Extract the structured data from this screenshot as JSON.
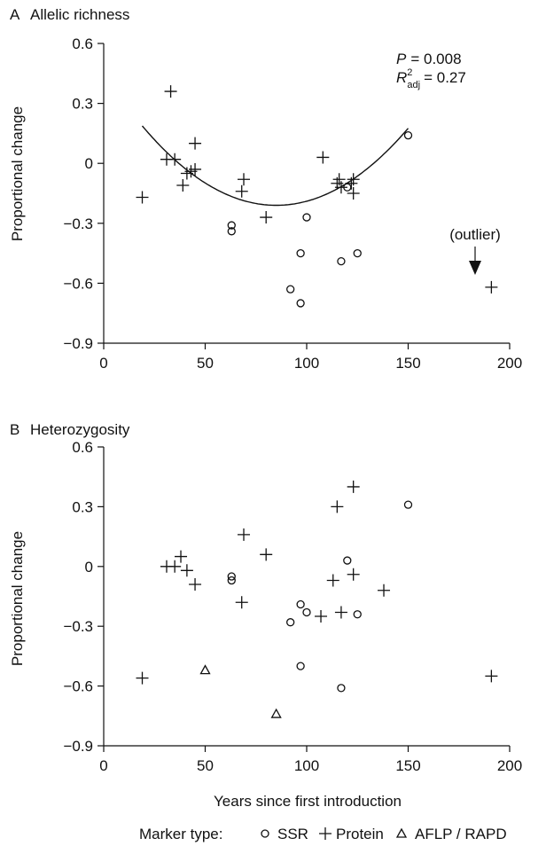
{
  "figure": {
    "xlabel": "Years since first introduction",
    "legend": {
      "title": "Marker type:",
      "items": [
        {
          "marker": "circle",
          "label": "SSR"
        },
        {
          "marker": "plus",
          "label": "Protein"
        },
        {
          "marker": "triangle",
          "label": "AFLP / RAPD"
        }
      ]
    }
  },
  "chart_data": [
    {
      "type": "scatter",
      "panel_letter": "A",
      "title": "Allelic richness",
      "xlabel": "",
      "ylabel": "Proportional change",
      "xlim": [
        0,
        200
      ],
      "ylim": [
        -0.9,
        0.6
      ],
      "xticks": [
        0,
        50,
        100,
        150,
        200
      ],
      "yticks": [
        -0.9,
        -0.6,
        -0.3,
        0,
        0.3,
        0.6
      ],
      "ytick_labels": [
        "−0.9",
        "−0.6",
        "−0.3",
        "0",
        "0.3",
        "0.6"
      ],
      "stats": {
        "p_label": "P",
        "p_value": "= 0.008",
        "r2_label": "R",
        "r2_sup": "2",
        "r2_sub": "adj",
        "r2_value": "= 0.27"
      },
      "annotation": {
        "text": "(outlier)",
        "x": 192,
        "y": -0.62
      },
      "fit": {
        "type": "quadratic",
        "x_range": [
          19,
          150
        ],
        "vertex_x": 85,
        "vertex_y": -0.21,
        "a": 9.12e-05
      },
      "series": [
        {
          "marker": "circle",
          "points": [
            [
              63,
              -0.31
            ],
            [
              63,
              -0.34
            ],
            [
              92,
              -0.63
            ],
            [
              97,
              -0.45
            ],
            [
              97,
              -0.7
            ],
            [
              100,
              -0.27
            ],
            [
              117,
              -0.49
            ],
            [
              120,
              -0.12
            ],
            [
              125,
              -0.45
            ],
            [
              150,
              0.14
            ]
          ]
        },
        {
          "marker": "plus",
          "points": [
            [
              19,
              -0.17
            ],
            [
              31,
              0.02
            ],
            [
              33,
              0.36
            ],
            [
              35,
              0.02
            ],
            [
              39,
              -0.11
            ],
            [
              41,
              -0.05
            ],
            [
              43,
              -0.04
            ],
            [
              45,
              0.1
            ],
            [
              45,
              -0.03
            ],
            [
              68,
              -0.14
            ],
            [
              69,
              -0.08
            ],
            [
              80,
              -0.27
            ],
            [
              108,
              0.03
            ],
            [
              115,
              -0.1
            ],
            [
              116,
              -0.08
            ],
            [
              117,
              -0.12
            ],
            [
              122,
              -0.1
            ],
            [
              123,
              -0.15
            ],
            [
              123,
              -0.08
            ],
            [
              191,
              -0.62
            ]
          ]
        },
        {
          "marker": "triangle",
          "points": []
        }
      ]
    },
    {
      "type": "scatter",
      "panel_letter": "B",
      "title": "Heterozygosity",
      "xlabel": "Years since first introduction",
      "ylabel": "Proportional change",
      "xlim": [
        0,
        200
      ],
      "ylim": [
        -0.9,
        0.6
      ],
      "xticks": [
        0,
        50,
        100,
        150,
        200
      ],
      "yticks": [
        -0.9,
        -0.6,
        -0.3,
        0,
        0.3,
        0.6
      ],
      "ytick_labels": [
        "−0.9",
        "−0.6",
        "−0.3",
        "0",
        "0.3",
        "0.6"
      ],
      "series": [
        {
          "marker": "circle",
          "points": [
            [
              63,
              -0.05
            ],
            [
              63,
              -0.07
            ],
            [
              92,
              -0.28
            ],
            [
              97,
              -0.19
            ],
            [
              97,
              -0.5
            ],
            [
              100,
              -0.23
            ],
            [
              117,
              -0.61
            ],
            [
              120,
              0.03
            ],
            [
              125,
              -0.24
            ],
            [
              150,
              0.31
            ]
          ]
        },
        {
          "marker": "plus",
          "points": [
            [
              19,
              -0.56
            ],
            [
              31,
              0.0
            ],
            [
              35,
              0.0
            ],
            [
              38,
              0.05
            ],
            [
              41,
              -0.02
            ],
            [
              45,
              -0.09
            ],
            [
              69,
              0.16
            ],
            [
              68,
              -0.18
            ],
            [
              80,
              0.06
            ],
            [
              107,
              -0.25
            ],
            [
              113,
              -0.07
            ],
            [
              115,
              0.3
            ],
            [
              117,
              -0.23
            ],
            [
              123,
              0.4
            ],
            [
              123,
              -0.04
            ],
            [
              138,
              -0.12
            ],
            [
              191,
              -0.55
            ]
          ]
        },
        {
          "marker": "triangle",
          "points": [
            [
              50,
              -0.52
            ],
            [
              85,
              -0.74
            ]
          ]
        }
      ]
    }
  ]
}
